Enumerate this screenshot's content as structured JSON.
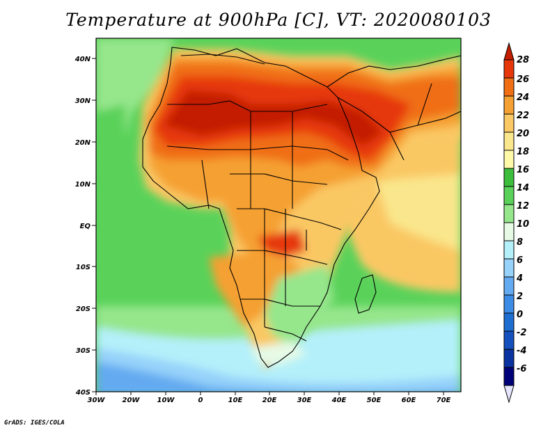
{
  "map": {
    "title": "Temperature at 900hPa [C], VT: 2020080103",
    "credit": "GrADS: IGES/COLA",
    "region": "Africa and Middle East",
    "lon_range": [
      -30,
      75
    ],
    "lat_range": [
      -40,
      45
    ],
    "lon_ticks": [
      "30W",
      "20W",
      "10W",
      "0",
      "10E",
      "20E",
      "30E",
      "40E",
      "50E",
      "60E",
      "70E"
    ],
    "lat_ticks": [
      "40N",
      "30N",
      "20N",
      "10N",
      "EQ",
      "10S",
      "20S",
      "30S",
      "40S"
    ]
  },
  "colorbar": {
    "labels": [
      "28",
      "26",
      "24",
      "22",
      "20",
      "18",
      "16",
      "14",
      "12",
      "10",
      "8",
      "6",
      "4",
      "2",
      "0",
      "-2",
      "-4",
      "-6"
    ],
    "colors": [
      "#c31e00",
      "#e6370a",
      "#f06e14",
      "#f5a032",
      "#fac864",
      "#fae68c",
      "#fffaaa",
      "#3cbe3c",
      "#5ad25a",
      "#96e68c",
      "#e6fae6",
      "#b4f0fa",
      "#96d2fa",
      "#64aaf0",
      "#3c8ce6",
      "#1e6ed2",
      "#1450be",
      "#0a32a0",
      "#000078",
      "#e6e6ff"
    ]
  }
}
